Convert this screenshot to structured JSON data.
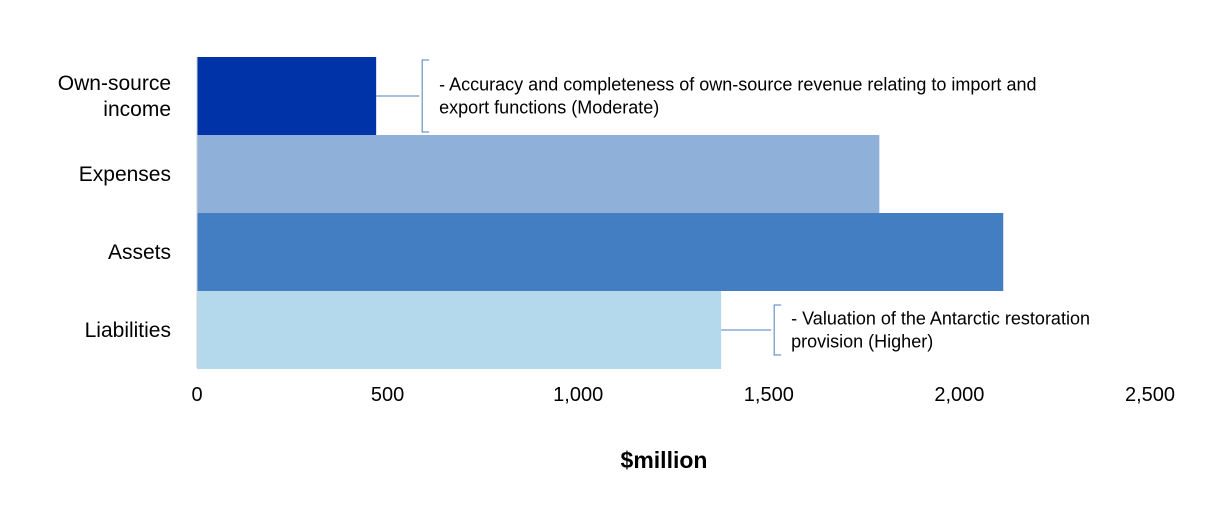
{
  "chart_data": {
    "type": "bar",
    "orientation": "horizontal",
    "categories": [
      "Own-source income",
      "Expenses",
      "Assets",
      "Liabilities"
    ],
    "category_label_lines": [
      [
        "Own-source",
        "income"
      ],
      [
        "Expenses"
      ],
      [
        "Assets"
      ],
      [
        "Liabilities"
      ]
    ],
    "values": [
      470,
      1790,
      2115,
      1375
    ],
    "colors": [
      "#0033a8",
      "#8fb1d9",
      "#437ec2",
      "#b4d9ec"
    ],
    "xlim": [
      0,
      2500
    ],
    "x_ticks": [
      0,
      500,
      1000,
      1500,
      2000,
      2500
    ],
    "x_tick_labels": [
      "0",
      "500",
      "1,000",
      "1,500",
      "2,000",
      "2,500"
    ],
    "xlabel": "$million",
    "ylabel": "",
    "title": "",
    "grid": false,
    "legend": "none",
    "annotations": [
      {
        "category": "Own-source income",
        "lines": [
          "- Accuracy and completeness of own-source revenue relating to import and",
          "export functions (Moderate)"
        ]
      },
      {
        "category": "Liabilities",
        "lines": [
          "- Valuation of the Antarctic restoration",
          "provision (Higher)"
        ]
      }
    ],
    "callout_color": "#4a7fc1"
  }
}
